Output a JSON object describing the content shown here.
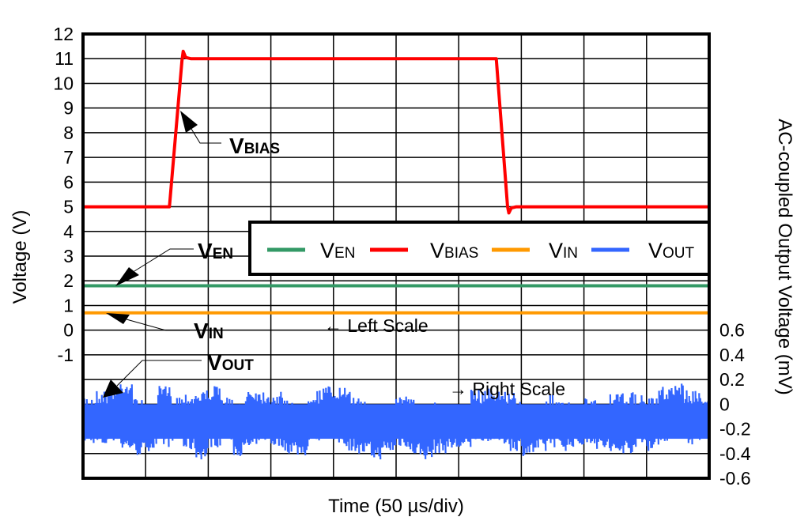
{
  "chart_data": {
    "type": "line",
    "xlabel": "Time (50 µs/div)",
    "ylabel": "Voltage (V)",
    "ylabel_right": "AC-coupled Output Voltage (mV)",
    "x_unit": "µs",
    "xlim": [
      0,
      500
    ],
    "ylim": [
      -6,
      12
    ],
    "ylim_right": [
      -0.6,
      3.0
    ],
    "yticks": [
      "12",
      "11",
      "10",
      "9",
      "8",
      "7",
      "6",
      "5",
      "4",
      "3",
      "2",
      "1",
      "0",
      "-1"
    ],
    "yticks_right": [
      "0.6",
      "0.4",
      "0.2",
      "0",
      "-0.2",
      "-0.4",
      "-0.6"
    ],
    "grid": true,
    "legend_position": "center-right",
    "series": [
      {
        "name_main": "V",
        "name_sub": "EN",
        "color": "#339966",
        "axis": "left",
        "x": [
          0,
          500
        ],
        "y": [
          1.8,
          1.8
        ]
      },
      {
        "name_main": "V",
        "name_sub": "BIAS",
        "color": "#ff0000",
        "axis": "left",
        "x": [
          0,
          69,
          79,
          80,
          82,
          86,
          95,
          330,
          339,
          340,
          342,
          346,
          500
        ],
        "y": [
          5,
          5,
          10.9,
          11.3,
          11.05,
          11.0,
          11.0,
          11.0,
          5,
          4.75,
          4.95,
          5.0,
          5.0
        ]
      },
      {
        "name_main": "V",
        "name_sub": "IN",
        "color": "#ff9900",
        "axis": "left",
        "x": [
          0,
          500
        ],
        "y": [
          0.7,
          0.7
        ]
      },
      {
        "name_main": "V",
        "name_sub": "OUT",
        "color": "#3366ff",
        "axis": "right",
        "x_bins": [
          0,
          10,
          20,
          30,
          40,
          50,
          60,
          70,
          80,
          90,
          100,
          110,
          120,
          130,
          140,
          150,
          160,
          170,
          180,
          190,
          200,
          210,
          220,
          230,
          240,
          250,
          260,
          270,
          280,
          290,
          300,
          310,
          320,
          330,
          340,
          350,
          360,
          370,
          380,
          390,
          400,
          410,
          420,
          430,
          440,
          450,
          460,
          470,
          480,
          490
        ],
        "max": [
          0.08,
          0.12,
          0.15,
          0.2,
          0.05,
          0.0,
          0.15,
          0.08,
          0.1,
          0.12,
          0.15,
          0.06,
          0.0,
          0.14,
          0.12,
          0.1,
          0.05,
          -0.02,
          0.12,
          0.15,
          0.14,
          0.1,
          0.05,
          -0.02,
          -0.05,
          0.08,
          0.05,
          0.0,
          0.05,
          0.0,
          -0.02,
          0.12,
          0.14,
          0.12,
          0.1,
          0.0,
          -0.02,
          0.08,
          0.02,
          0.0,
          0.05,
          -0.02,
          0.08,
          0.1,
          0.08,
          0.05,
          0.15,
          0.18,
          0.12,
          0.1
        ],
        "min": [
          -0.32,
          -0.35,
          -0.3,
          -0.38,
          -0.42,
          -0.38,
          -0.35,
          -0.3,
          -0.38,
          -0.45,
          -0.35,
          -0.3,
          -0.42,
          -0.38,
          -0.3,
          -0.35,
          -0.4,
          -0.42,
          -0.3,
          -0.28,
          -0.33,
          -0.38,
          -0.42,
          -0.45,
          -0.4,
          -0.35,
          -0.42,
          -0.45,
          -0.4,
          -0.38,
          -0.38,
          -0.3,
          -0.3,
          -0.33,
          -0.38,
          -0.42,
          -0.4,
          -0.35,
          -0.38,
          -0.35,
          -0.32,
          -0.38,
          -0.42,
          -0.4,
          -0.35,
          -0.38,
          -0.3,
          -0.28,
          -0.33,
          -0.3
        ]
      }
    ],
    "annotations": [
      {
        "main": "V",
        "sub": "BIAS"
      },
      {
        "main": "V",
        "sub": "EN"
      },
      {
        "main": "V",
        "sub": "IN"
      },
      {
        "main": "V",
        "sub": "OUT"
      },
      {
        "text": "← Left Scale"
      },
      {
        "text": "→ Right Scale"
      }
    ]
  }
}
